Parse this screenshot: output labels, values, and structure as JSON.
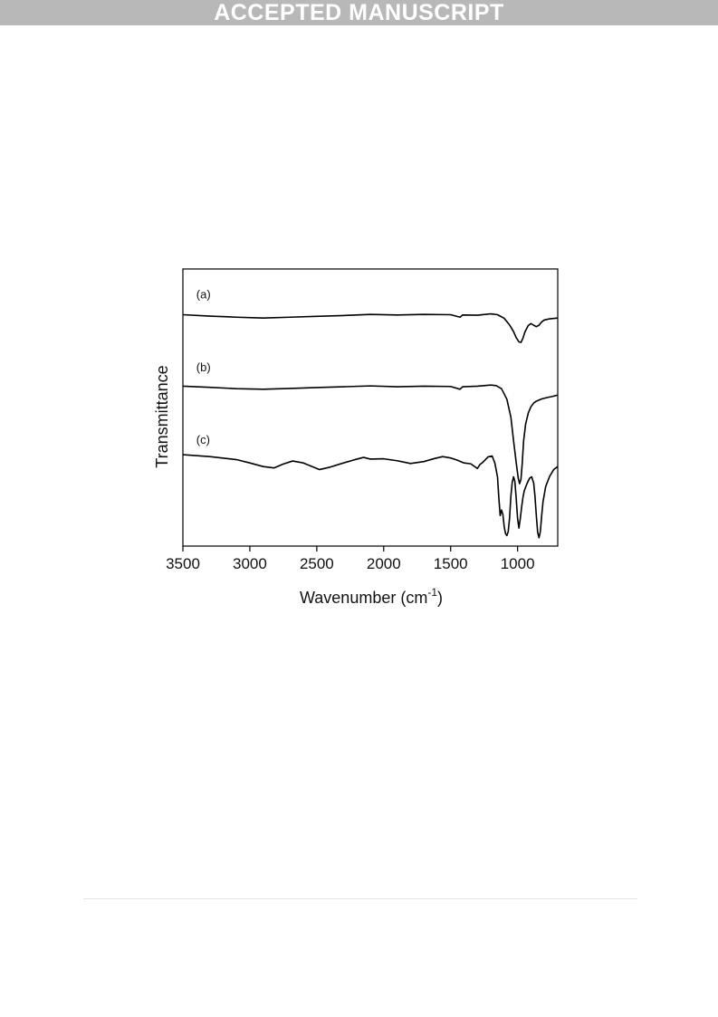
{
  "banner": {
    "text": "ACCEPTED MANUSCRIPT"
  },
  "chart_data": {
    "type": "line",
    "xlabel": "Wavenumber (cm",
    "xlabel_sup": "-1",
    "xlabel_close": ")",
    "ylabel": "Transmittance",
    "xlim": [
      3500,
      700
    ],
    "x_reversed": true,
    "y_ticks_shown": false,
    "xticks": [
      3500,
      3000,
      2500,
      2000,
      1500,
      1000
    ],
    "xtick_labels": [
      "3500",
      "3000",
      "2500",
      "2000",
      "1500",
      "1000"
    ],
    "ylim": [
      0,
      1
    ],
    "grid": false,
    "legend": "none",
    "series": [
      {
        "label": "(a)",
        "label_x": 3400,
        "label_y": 0.893,
        "points": [
          [
            3500,
            0.835
          ],
          [
            3300,
            0.83
          ],
          [
            3100,
            0.826
          ],
          [
            2900,
            0.823
          ],
          [
            2700,
            0.826
          ],
          [
            2500,
            0.829
          ],
          [
            2300,
            0.832
          ],
          [
            2100,
            0.836
          ],
          [
            1900,
            0.834
          ],
          [
            1700,
            0.836
          ],
          [
            1500,
            0.835
          ],
          [
            1430,
            0.826
          ],
          [
            1410,
            0.834
          ],
          [
            1300,
            0.833
          ],
          [
            1200,
            0.838
          ],
          [
            1150,
            0.835
          ],
          [
            1100,
            0.822
          ],
          [
            1060,
            0.798
          ],
          [
            1030,
            0.774
          ],
          [
            1010,
            0.752
          ],
          [
            990,
            0.737
          ],
          [
            975,
            0.735
          ],
          [
            960,
            0.75
          ],
          [
            945,
            0.773
          ],
          [
            920,
            0.796
          ],
          [
            900,
            0.803
          ],
          [
            880,
            0.797
          ],
          [
            860,
            0.792
          ],
          [
            840,
            0.797
          ],
          [
            820,
            0.809
          ],
          [
            800,
            0.816
          ],
          [
            760,
            0.82
          ],
          [
            700,
            0.823
          ]
        ]
      },
      {
        "label": "(b)",
        "label_x": 3400,
        "label_y": 0.63,
        "points": [
          [
            3500,
            0.577
          ],
          [
            3300,
            0.573
          ],
          [
            3100,
            0.568
          ],
          [
            2900,
            0.566
          ],
          [
            2700,
            0.569
          ],
          [
            2500,
            0.572
          ],
          [
            2300,
            0.575
          ],
          [
            2100,
            0.578
          ],
          [
            1900,
            0.575
          ],
          [
            1700,
            0.577
          ],
          [
            1500,
            0.576
          ],
          [
            1430,
            0.566
          ],
          [
            1410,
            0.575
          ],
          [
            1300,
            0.577
          ],
          [
            1200,
            0.581
          ],
          [
            1160,
            0.579
          ],
          [
            1120,
            0.568
          ],
          [
            1080,
            0.53
          ],
          [
            1050,
            0.465
          ],
          [
            1030,
            0.38
          ],
          [
            1010,
            0.3
          ],
          [
            995,
            0.245
          ],
          [
            985,
            0.225
          ],
          [
            975,
            0.24
          ],
          [
            965,
            0.3
          ],
          [
            955,
            0.38
          ],
          [
            940,
            0.44
          ],
          [
            920,
            0.48
          ],
          [
            900,
            0.503
          ],
          [
            880,
            0.516
          ],
          [
            860,
            0.523
          ],
          [
            820,
            0.531
          ],
          [
            780,
            0.536
          ],
          [
            740,
            0.54
          ],
          [
            700,
            0.545
          ]
        ]
      },
      {
        "label": "(c)",
        "label_x": 3400,
        "label_y": 0.37,
        "points": [
          [
            3500,
            0.33
          ],
          [
            3300,
            0.323
          ],
          [
            3100,
            0.312
          ],
          [
            3000,
            0.3
          ],
          [
            2900,
            0.287
          ],
          [
            2820,
            0.282
          ],
          [
            2750,
            0.296
          ],
          [
            2680,
            0.307
          ],
          [
            2600,
            0.3
          ],
          [
            2530,
            0.286
          ],
          [
            2480,
            0.276
          ],
          [
            2400,
            0.285
          ],
          [
            2300,
            0.3
          ],
          [
            2200,
            0.314
          ],
          [
            2150,
            0.32
          ],
          [
            2100,
            0.314
          ],
          [
            2000,
            0.315
          ],
          [
            1900,
            0.308
          ],
          [
            1800,
            0.298
          ],
          [
            1700,
            0.305
          ],
          [
            1620,
            0.316
          ],
          [
            1560,
            0.323
          ],
          [
            1500,
            0.318
          ],
          [
            1450,
            0.31
          ],
          [
            1400,
            0.3
          ],
          [
            1350,
            0.297
          ],
          [
            1300,
            0.28
          ],
          [
            1280,
            0.295
          ],
          [
            1260,
            0.302
          ],
          [
            1220,
            0.322
          ],
          [
            1190,
            0.325
          ],
          [
            1170,
            0.3
          ],
          [
            1150,
            0.25
          ],
          [
            1140,
            0.175
          ],
          [
            1130,
            0.11
          ],
          [
            1120,
            0.13
          ],
          [
            1110,
            0.115
          ],
          [
            1100,
            0.07
          ],
          [
            1090,
            0.045
          ],
          [
            1080,
            0.038
          ],
          [
            1070,
            0.052
          ],
          [
            1060,
            0.1
          ],
          [
            1050,
            0.18
          ],
          [
            1040,
            0.23
          ],
          [
            1030,
            0.25
          ],
          [
            1020,
            0.232
          ],
          [
            1010,
            0.17
          ],
          [
            1000,
            0.1
          ],
          [
            990,
            0.065
          ],
          [
            980,
            0.098
          ],
          [
            970,
            0.14
          ],
          [
            960,
            0.175
          ],
          [
            950,
            0.2
          ],
          [
            930,
            0.225
          ],
          [
            910,
            0.245
          ],
          [
            895,
            0.25
          ],
          [
            880,
            0.228
          ],
          [
            870,
            0.18
          ],
          [
            860,
            0.11
          ],
          [
            850,
            0.05
          ],
          [
            840,
            0.03
          ],
          [
            830,
            0.052
          ],
          [
            820,
            0.11
          ],
          [
            810,
            0.16
          ],
          [
            790,
            0.215
          ],
          [
            760,
            0.252
          ],
          [
            730,
            0.276
          ],
          [
            700,
            0.287
          ]
        ]
      }
    ]
  }
}
